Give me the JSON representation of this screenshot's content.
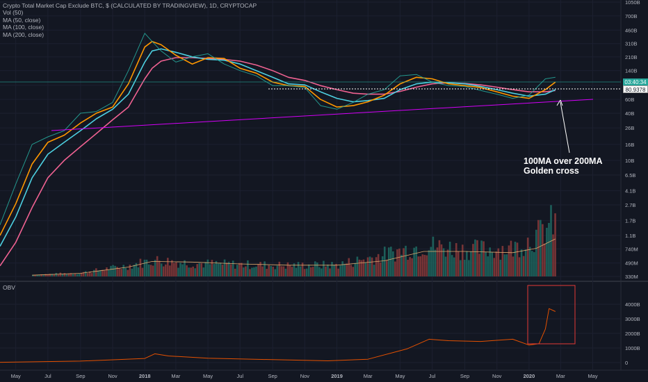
{
  "chart_data": [
    {
      "type": "line",
      "title": "Crypto Total Market Cap Exclude BTC, $ (CALCULATED BY TRADINGVIEW), 1D, CRYPTOCAP",
      "scale": "log",
      "legend": [
        "Vol (50)",
        "MA (50, close)",
        "MA (100, close)",
        "MA (200, close)"
      ],
      "x_ticks": [
        "May",
        "Jul",
        "Sep",
        "Nov",
        "2018",
        "Mar",
        "May",
        "Jul",
        "Sep",
        "Nov",
        "2019",
        "Mar",
        "May",
        "Jul",
        "Sep",
        "Nov",
        "2020",
        "Mar",
        "May"
      ],
      "y_ticks": [
        "1050B",
        "700B",
        "460B",
        "310B",
        "210B",
        "140B",
        "91B",
        "60B",
        "40B",
        "26B",
        "16B",
        "10B",
        "6.5B",
        "4.1B",
        "2.7B",
        "1.7B",
        "1.1B",
        "740M",
        "490M",
        "330M"
      ],
      "price_axis_tags": {
        "countdown": "03:40:34",
        "level": "80.9378"
      },
      "x": [
        "2017-04-01",
        "2017-05-01",
        "2017-06-01",
        "2017-07-01",
        "2017-08-01",
        "2017-09-01",
        "2017-10-01",
        "2017-11-01",
        "2017-12-01",
        "2018-01-01",
        "2018-01-15",
        "2018-02-01",
        "2018-03-01",
        "2018-04-01",
        "2018-05-01",
        "2018-06-01",
        "2018-07-01",
        "2018-08-01",
        "2018-09-01",
        "2018-10-01",
        "2018-11-01",
        "2018-12-01",
        "2019-01-01",
        "2019-02-01",
        "2019-03-01",
        "2019-04-01",
        "2019-05-01",
        "2019-06-01",
        "2019-07-01",
        "2019-08-01",
        "2019-09-01",
        "2019-10-01",
        "2019-11-01",
        "2019-12-01",
        "2020-01-01",
        "2020-02-01",
        "2020-02-20"
      ],
      "series": [
        {
          "name": "Crypto Total Market Cap Exclude BTC",
          "color": "#26a69a",
          "values": [
            1.5,
            5,
            16,
            20,
            24,
            40,
            42,
            55,
            140,
            420,
            330,
            250,
            180,
            210,
            230,
            170,
            140,
            120,
            90,
            90,
            85,
            50,
            45,
            55,
            70,
            80,
            120,
            125,
            100,
            90,
            88,
            78,
            70,
            62,
            68,
            110,
            115
          ]
        },
        {
          "name": "MA (50, close)",
          "color": "#ff9800",
          "values": [
            1.1,
            2.8,
            9,
            17,
            21,
            30,
            40,
            48,
            95,
            280,
            330,
            300,
            220,
            170,
            205,
            200,
            150,
            130,
            100,
            90,
            88,
            60,
            48,
            50,
            56,
            68,
            95,
            115,
            110,
            95,
            90,
            85,
            75,
            66,
            62,
            80,
            100
          ]
        },
        {
          "name": "MA (100, close)",
          "color": "#4dd0e1",
          "values": [
            0.8,
            1.9,
            6,
            12,
            17,
            24,
            34,
            45,
            70,
            180,
            250,
            265,
            240,
            210,
            195,
            190,
            170,
            140,
            115,
            95,
            92,
            75,
            62,
            56,
            58,
            62,
            80,
            95,
            100,
            98,
            95,
            88,
            80,
            72,
            66,
            70,
            80
          ]
        },
        {
          "name": "MA (200, close)",
          "color": "#f06292",
          "values": [
            0.45,
            0.9,
            2.5,
            6,
            10,
            15,
            22,
            33,
            48,
            110,
            150,
            185,
            205,
            205,
            200,
            195,
            185,
            165,
            140,
            115,
            105,
            90,
            80,
            72,
            70,
            70,
            76,
            86,
            95,
            98,
            96,
            92,
            86,
            80,
            75,
            75,
            78
          ]
        }
      ],
      "volume": {
        "name": "Vol (50)",
        "unit": "USD",
        "x": [
          "2017-06-01",
          "2017-09-01",
          "2017-12-01",
          "2018-01-15",
          "2018-04-01",
          "2018-07-01",
          "2018-10-01",
          "2019-01-01",
          "2019-04-01",
          "2019-06-15",
          "2019-09-01",
          "2019-12-01",
          "2020-01-15",
          "2020-02-20"
        ],
        "values": [
          50000000,
          120000000,
          350000000,
          520000000,
          420000000,
          380000000,
          350000000,
          370000000,
          700000000,
          1000000000,
          850000000,
          900000000,
          1300000000,
          1800000000
        ],
        "ma_values": [
          40000000,
          100000000,
          300000000,
          480000000,
          460000000,
          400000000,
          360000000,
          360000000,
          500000000,
          800000000,
          800000000,
          760000000,
          900000000,
          1200000000
        ]
      }
    },
    {
      "type": "line",
      "title": "OBV",
      "y_ticks": [
        "4000B",
        "3000B",
        "2000B",
        "1000B",
        "0"
      ],
      "ylim": [
        -200,
        4100
      ],
      "x": [
        "2017-04-01",
        "2017-09-01",
        "2018-01-01",
        "2018-01-20",
        "2018-02-15",
        "2018-05-01",
        "2018-09-01",
        "2018-12-15",
        "2019-03-01",
        "2019-05-15",
        "2019-06-25",
        "2019-08-01",
        "2019-10-01",
        "2019-12-01",
        "2020-01-01",
        "2020-01-20",
        "2020-02-01",
        "2020-02-08",
        "2020-02-20"
      ],
      "series": [
        {
          "name": "OBV",
          "color": "#e65100",
          "values": [
            20,
            100,
            280,
            600,
            450,
            300,
            200,
            120,
            230,
            950,
            1600,
            1500,
            1450,
            1600,
            1200,
            1300,
            2300,
            3700,
            3500
          ]
        }
      ]
    }
  ],
  "annotations": {
    "callout_line1": "100MA over 200MA",
    "callout_line2": "Golden cross"
  }
}
